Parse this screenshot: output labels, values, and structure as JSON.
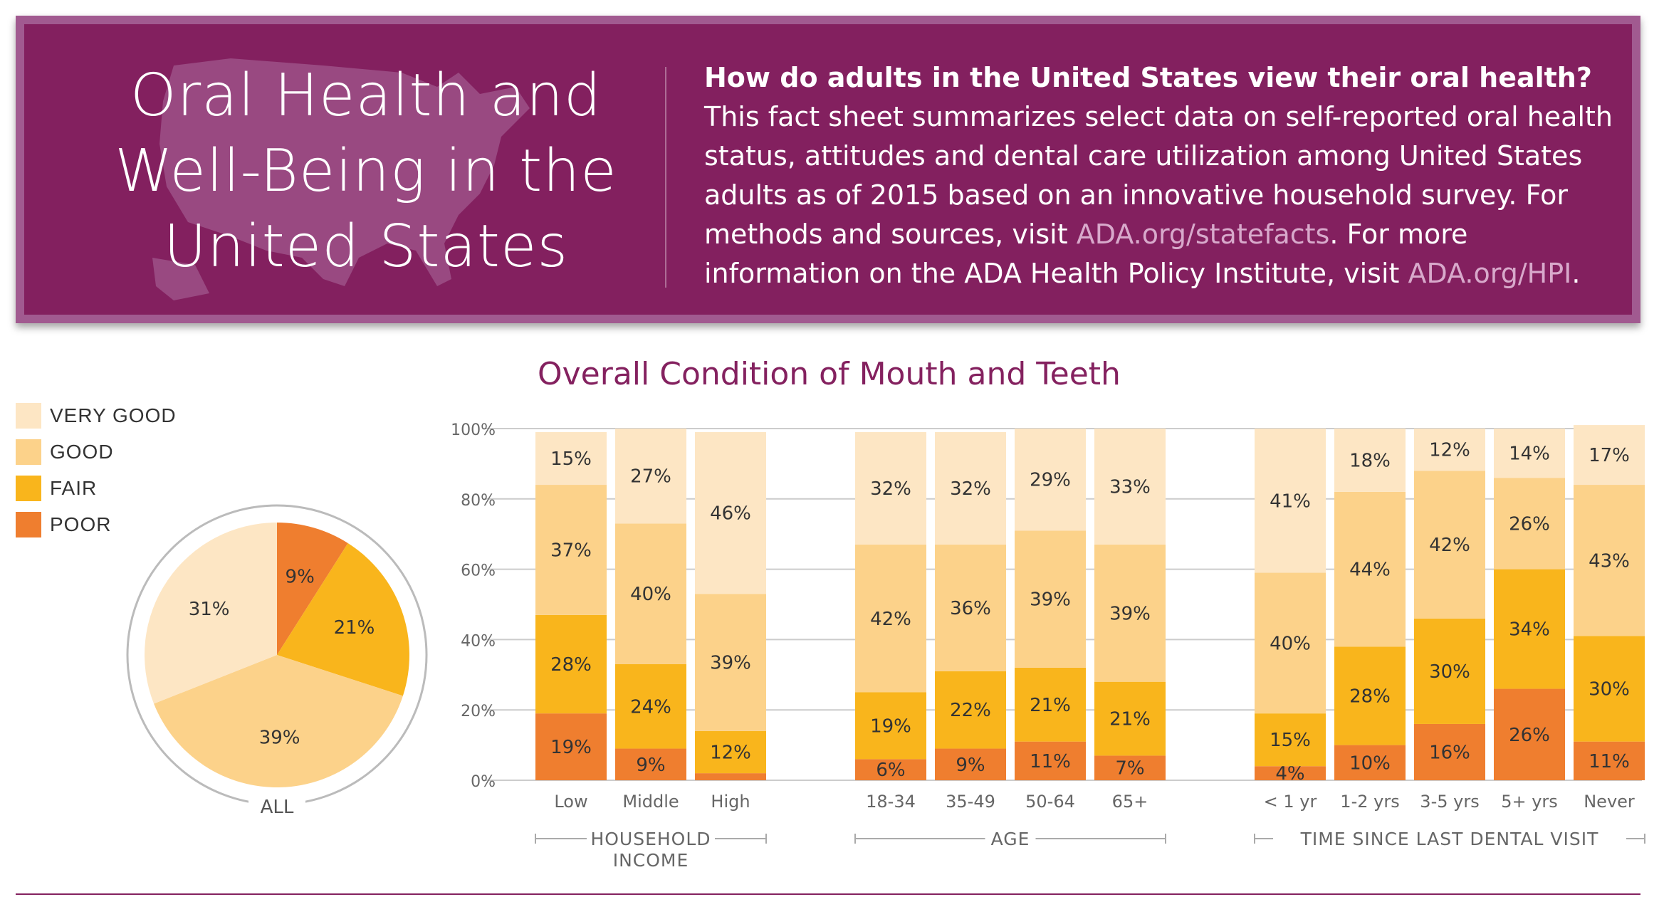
{
  "header": {
    "title_lines": [
      "Oral Health and",
      "Well-Being in the",
      "United States"
    ],
    "intro_question": "How do adults in the United States view their oral health?",
    "intro_text_1": " This fact sheet summarizes select data on self-reported oral health status, attitudes and dental care utilization among United States adults as of 2015 based on an innovative household survey. For methods and sources, visit ",
    "intro_link_1": "ADA.org/statefacts",
    "intro_text_2": ". For more information on the ADA Health Policy Institute, visit ",
    "intro_link_2": "ADA.org/HPI",
    "intro_text_3": "."
  },
  "colors": {
    "banner": "#83205f",
    "banner_border": "#a15a90",
    "very_good": "#fde6c4",
    "good": "#fcd28a",
    "fair": "#f9b51c",
    "poor": "#ef7e2f",
    "title": "#84215f",
    "grid": "#cccccc",
    "axis_text": "#666666"
  },
  "legend": [
    {
      "label": "VERY GOOD",
      "color": "#fde6c4"
    },
    {
      "label": "GOOD",
      "color": "#fcd28a"
    },
    {
      "label": "FAIR",
      "color": "#f9b51c"
    },
    {
      "label": "POOR",
      "color": "#ef7e2f"
    }
  ],
  "chart_data": [
    {
      "type": "pie",
      "label": "ALL",
      "slices": [
        {
          "name": "POOR",
          "value": 9,
          "label": "9%"
        },
        {
          "name": "FAIR",
          "value": 21,
          "label": "21%"
        },
        {
          "name": "GOOD",
          "value": 39,
          "label": "39%"
        },
        {
          "name": "VERY GOOD",
          "value": 31,
          "label": "31%"
        }
      ]
    },
    {
      "type": "bar",
      "stacked": true,
      "title": "Overall Condition of Mouth and Teeth",
      "ylim": [
        0,
        100
      ],
      "yticks": [
        "0%",
        "20%",
        "40%",
        "60%",
        "80%",
        "100%"
      ],
      "grid": true,
      "series_order": [
        "POOR",
        "FAIR",
        "GOOD",
        "VERY GOOD"
      ],
      "groups": [
        {
          "label": "HOUSEHOLD INCOME",
          "categories": [
            {
              "name": "Low",
              "values": [
                19,
                28,
                37,
                15
              ],
              "labels": [
                "19%",
                "28%",
                "37%",
                "15%"
              ]
            },
            {
              "name": "Middle",
              "values": [
                9,
                24,
                40,
                27
              ],
              "labels": [
                "9%",
                "24%",
                "40%",
                "27%"
              ]
            },
            {
              "name": "High",
              "values": [
                2,
                12,
                39,
                46
              ],
              "labels": [
                "",
                "12%",
                "39%",
                "46%"
              ]
            }
          ]
        },
        {
          "label": "AGE",
          "categories": [
            {
              "name": "18-34",
              "values": [
                6,
                19,
                42,
                32
              ],
              "labels": [
                "6%",
                "19%",
                "42%",
                "32%"
              ]
            },
            {
              "name": "35-49",
              "values": [
                9,
                22,
                36,
                32
              ],
              "labels": [
                "9%",
                "22%",
                "36%",
                "32%"
              ]
            },
            {
              "name": "50-64",
              "values": [
                11,
                21,
                39,
                29
              ],
              "labels": [
                "11%",
                "21%",
                "39%",
                "29%"
              ]
            },
            {
              "name": "65+",
              "values": [
                7,
                21,
                39,
                33
              ],
              "labels": [
                "7%",
                "21%",
                "39%",
                "33%"
              ]
            }
          ]
        },
        {
          "label": "TIME SINCE LAST DENTAL VISIT",
          "categories": [
            {
              "name": "< 1 yr",
              "values": [
                4,
                15,
                40,
                41
              ],
              "labels": [
                "4%",
                "15%",
                "40%",
                "41%"
              ]
            },
            {
              "name": "1-2 yrs",
              "values": [
                10,
                28,
                44,
                18
              ],
              "labels": [
                "10%",
                "28%",
                "44%",
                "18%"
              ]
            },
            {
              "name": "3-5 yrs",
              "values": [
                16,
                30,
                42,
                12
              ],
              "labels": [
                "16%",
                "30%",
                "42%",
                "12%"
              ]
            },
            {
              "name": "5+ yrs",
              "values": [
                26,
                34,
                26,
                14
              ],
              "labels": [
                "26%",
                "34%",
                "26%",
                "14%"
              ]
            },
            {
              "name": "Never",
              "values": [
                11,
                30,
                43,
                17
              ],
              "labels": [
                "11%",
                "30%",
                "43%",
                "17%"
              ]
            }
          ]
        }
      ]
    }
  ]
}
